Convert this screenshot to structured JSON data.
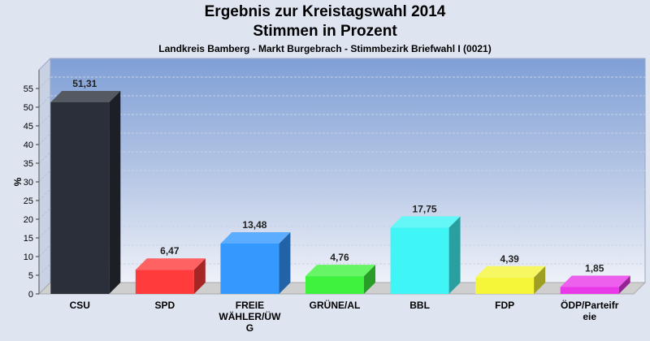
{
  "chart_data": {
    "type": "bar",
    "title": "Ergebnis zur Kreistagswahl 2014",
    "subtitle": "Stimmen in Prozent",
    "caption": "Landkreis Bamberg - Markt Burgebrach - Stimmbezirk Briefwahl I (0021)",
    "ylabel": "%",
    "xlabel": "",
    "ylim": [
      0,
      60
    ],
    "yticks": [
      0,
      5,
      10,
      15,
      20,
      25,
      30,
      35,
      40,
      45,
      50,
      55
    ],
    "grid": true,
    "categories": [
      "CSU",
      "SPD",
      "FREIE WÄHLER/ÜWG",
      "GRÜNE/AL",
      "BBL",
      "FDP",
      "ÖDP/Parteifreie"
    ],
    "category_lines": [
      [
        "CSU"
      ],
      [
        "SPD"
      ],
      [
        "FREIE",
        "WÄHLER/ÜW",
        "G"
      ],
      [
        "GRÜNE/AL"
      ],
      [
        "BBL"
      ],
      [
        "FDP"
      ],
      [
        "ÖDP/Parteifr",
        "eie"
      ]
    ],
    "values": [
      51.31,
      6.47,
      13.48,
      4.76,
      17.75,
      4.39,
      1.85
    ],
    "value_labels": [
      "51,31",
      "6,47",
      "13,48",
      "4,76",
      "17,75",
      "4,39",
      "1,85"
    ],
    "colors": [
      "#2b2f3a",
      "#ff3b3b",
      "#3399ff",
      "#3ef23e",
      "#3ff5f5",
      "#f5f53a",
      "#e838e8"
    ]
  }
}
